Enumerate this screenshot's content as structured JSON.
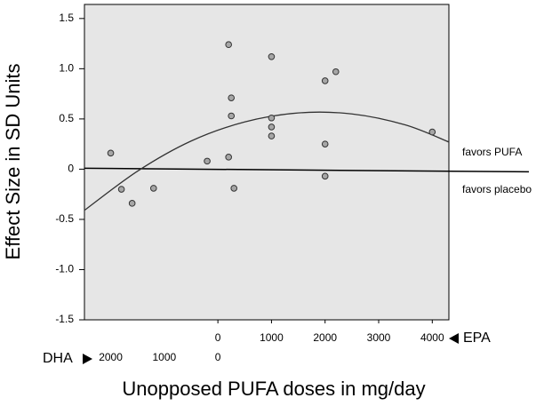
{
  "chart_data": {
    "type": "scatter",
    "ylabel": "Effect Size in SD Units",
    "xlabel": "Unopposed PUFA doses in mg/day",
    "x": [
      -2000,
      -1800,
      -1600,
      -1200,
      -200,
      200,
      200,
      250,
      250,
      300,
      1000,
      1000,
      1000,
      1000,
      2000,
      2200,
      2000,
      2000,
      4000
    ],
    "values": [
      0.16,
      -0.2,
      -0.34,
      -0.19,
      0.08,
      0.12,
      1.24,
      0.71,
      0.53,
      -0.19,
      1.12,
      0.51,
      0.42,
      0.33,
      0.88,
      0.97,
      0.25,
      -0.07,
      0.37
    ],
    "color": "#a6a6a6",
    "background": "#e6e6e6",
    "xlim": [
      -2490,
      4310
    ],
    "ylim": [
      -1.5,
      1.64
    ],
    "yticks": [
      -1.5,
      {
        "value": -1,
        "label": "-1.0"
      },
      -0.5,
      0,
      0.5,
      {
        "value": 1,
        "label": "1.0"
      },
      1.5
    ],
    "xticks_title": "EPA",
    "xticks": [
      0,
      1000,
      2000,
      3000,
      4000
    ],
    "x2ticks_title": "DHA",
    "x2ticks": [
      {
        "value": -2000,
        "label": "2000"
      },
      {
        "value": -1000,
        "label": "1000"
      },
      {
        "value": 0,
        "label": "0"
      }
    ],
    "fit": {
      "x": [
        -2490,
        -1500,
        -500,
        500,
        1500,
        2500,
        3500,
        4310
      ],
      "values": [
        -0.41,
        -0.02,
        0.28,
        0.47,
        0.56,
        0.55,
        0.44,
        0.27
      ],
      "color": "#333333"
    },
    "reference_line": 0,
    "annotations": [
      "favors PUFA",
      "favors placebo"
    ]
  }
}
